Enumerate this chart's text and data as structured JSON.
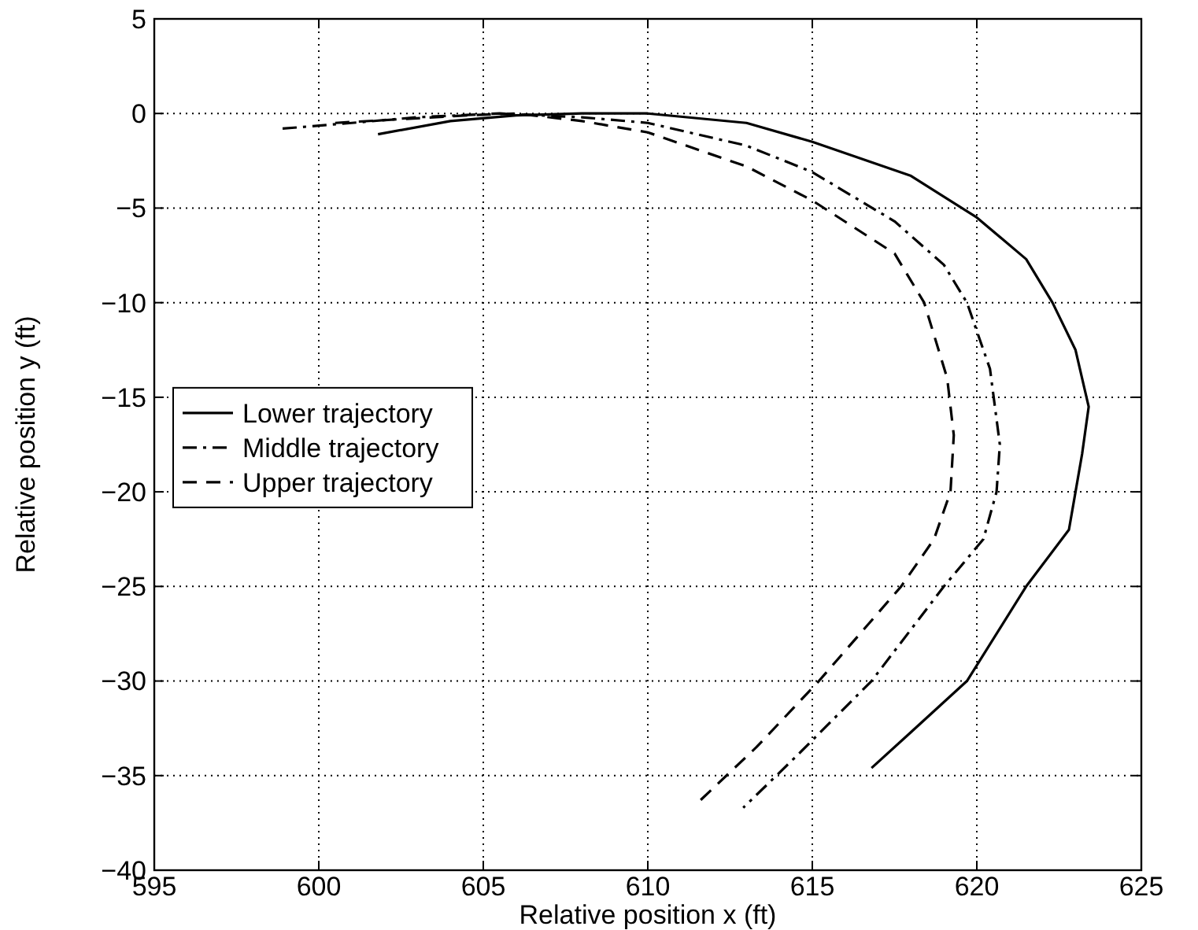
{
  "chart_data": {
    "type": "line",
    "xlabel": "Relative position x (ft)",
    "ylabel": "Relative position y (ft)",
    "xlim": [
      595,
      625
    ],
    "xticks": [
      595,
      600,
      605,
      610,
      615,
      620,
      625
    ],
    "ylim": [
      -40,
      5
    ],
    "yticks": [
      -40,
      -35,
      -30,
      -25,
      -20,
      -15,
      -10,
      -5,
      0,
      5
    ],
    "grid": true,
    "legend": "left",
    "series": [
      {
        "name": "Lower trajectory",
        "color": "#000000",
        "line_style": "solid",
        "x": [
          601.8,
          604,
          606,
          608,
          610,
          613,
          615,
          618,
          620,
          621.5,
          622.3,
          623,
          623.4,
          623.2,
          623,
          622.8,
          621.5,
          619.7,
          618,
          616.8
        ],
        "values": [
          -1.1,
          -0.4,
          -0.1,
          0,
          0,
          -0.5,
          -1.5,
          -3.3,
          -5.5,
          -7.7,
          -10,
          -12.5,
          -15.5,
          -18,
          -20,
          -22,
          -25,
          -30,
          -32.7,
          -34.6
        ]
      },
      {
        "name": "Middle trajectory",
        "color": "#000000",
        "line_style": "dashdot",
        "x": [
          598.9,
          601,
          603,
          605.5,
          608,
          610,
          613,
          615,
          617.5,
          619,
          619.7,
          620.4,
          620.7,
          620.6,
          620.2,
          619,
          616.8,
          614.5,
          612.9
        ],
        "values": [
          -0.8,
          -0.5,
          -0.2,
          0,
          -0.2,
          -0.5,
          -1.7,
          -3.1,
          -5.7,
          -8,
          -10,
          -13.5,
          -17.5,
          -20,
          -22.5,
          -25,
          -30,
          -34,
          -36.7
        ]
      },
      {
        "name": "Upper trajectory",
        "color": "#000000",
        "line_style": "dashed",
        "x": [
          600.5,
          602.5,
          604.5,
          606,
          608,
          610,
          613,
          615,
          617.5,
          618.4,
          619.1,
          619.3,
          619.2,
          618.7,
          617.7,
          615.2,
          613.3,
          611.6
        ],
        "values": [
          -0.5,
          -0.3,
          -0.1,
          0,
          -0.4,
          -1,
          -2.8,
          -4.6,
          -7.4,
          -10,
          -14,
          -17,
          -20,
          -22.5,
          -25,
          -30,
          -33.5,
          -36.3
        ]
      }
    ]
  }
}
